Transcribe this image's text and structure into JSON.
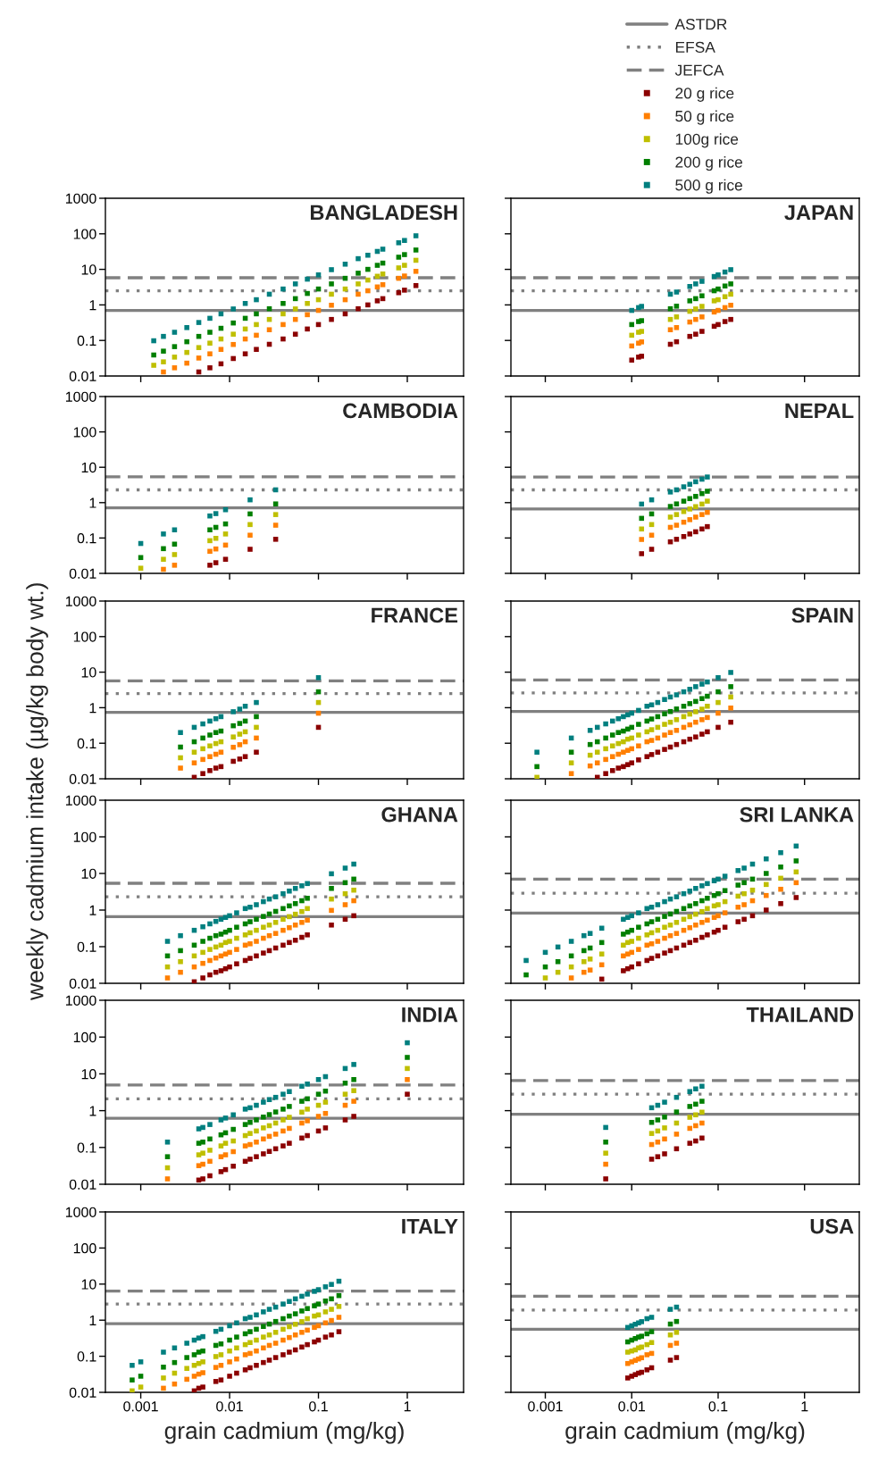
{
  "chart_data": [
    {
      "type": "scatter",
      "title": "BANGLADESH",
      "log": "xy",
      "xlim": [
        0.0004,
        4.3
      ],
      "ylim": [
        0.01,
        1000
      ],
      "xticks": [
        0.001,
        0.01,
        0.1,
        1
      ],
      "yticks": [
        0.01,
        0.1,
        1,
        10,
        100,
        1000
      ],
      "tick_labels": "y",
      "legend": "top right",
      "marker": "square",
      "ref_lines": [
        {
          "axis": "y",
          "value": 0.7,
          "label": "ASTDR",
          "color": "#808080",
          "line_style": "solid"
        },
        {
          "axis": "y",
          "value": 2.5,
          "label": "EFSA",
          "color": "#808080",
          "line_style": "dotted"
        },
        {
          "axis": "y",
          "value": 5.8,
          "label": "JEFCA",
          "color": "#808080",
          "line_style": "dashed"
        }
      ],
      "x": [
        0.0014,
        0.0018,
        0.0024,
        0.0033,
        0.0045,
        0.006,
        0.008,
        0.011,
        0.015,
        0.02,
        0.028,
        0.04,
        0.055,
        0.075,
        0.1,
        0.14,
        0.2,
        0.28,
        0.36,
        0.46,
        0.53,
        0.8,
        0.93,
        1.25
      ],
      "series": [
        {
          "name": "20 g rice",
          "color": "#8b0000",
          "values": [
            null,
            null,
            null,
            null,
            0.013,
            0.017,
            0.022,
            0.031,
            0.042,
            0.056,
            0.078,
            0.11,
            0.15,
            0.21,
            0.28,
            0.39,
            0.56,
            0.78,
            1,
            1.3,
            1.5,
            2.2,
            2.6,
            3.5
          ]
        },
        {
          "name": "50 g rice",
          "color": "#ff7f00",
          "values": [
            null,
            0.013,
            0.017,
            0.023,
            0.032,
            0.042,
            0.056,
            0.077,
            0.11,
            0.14,
            0.2,
            0.28,
            0.39,
            0.53,
            0.7,
            0.98,
            1.4,
            2,
            2.5,
            3.2,
            3.7,
            5.6,
            6.5,
            8.8
          ]
        },
        {
          "name": "100g rice",
          "color": "#bfbf00",
          "values": [
            0.02,
            0.025,
            0.034,
            0.046,
            0.063,
            0.084,
            0.11,
            0.15,
            0.21,
            0.28,
            0.39,
            0.56,
            0.77,
            1.1,
            1.4,
            2,
            2.8,
            3.9,
            5,
            6.4,
            7.4,
            11,
            13,
            18
          ]
        },
        {
          "name": "200 g rice",
          "color": "#007f00",
          "values": [
            0.039,
            0.05,
            0.067,
            0.092,
            0.13,
            0.17,
            0.22,
            0.31,
            0.42,
            0.56,
            0.78,
            1.1,
            1.5,
            2.1,
            2.8,
            3.9,
            5.6,
            7.8,
            10,
            13,
            15,
            22,
            26,
            35
          ]
        },
        {
          "name": "500 g rice",
          "color": "#007f7f",
          "values": [
            0.098,
            0.13,
            0.17,
            0.23,
            0.32,
            0.42,
            0.56,
            0.77,
            1.1,
            1.4,
            2,
            2.8,
            3.9,
            5.3,
            7,
            9.8,
            14,
            20,
            25,
            32,
            37,
            56,
            65,
            88
          ]
        }
      ]
    },
    {
      "type": "scatter",
      "title": "JAPAN",
      "log": "xy",
      "xlim": [
        0.0004,
        4.3
      ],
      "ylim": [
        0.01,
        1000
      ],
      "xticks": [
        0.001,
        0.01,
        0.1,
        1
      ],
      "yticks": [
        0.01,
        0.1,
        1,
        10,
        100,
        1000
      ],
      "tick_labels": false,
      "ref_lines": [
        {
          "axis": "y",
          "value": 0.7,
          "color": "#808080",
          "line_style": "solid"
        },
        {
          "axis": "y",
          "value": 2.5,
          "color": "#808080",
          "line_style": "dotted"
        },
        {
          "axis": "y",
          "value": 5.8,
          "color": "#808080",
          "line_style": "dashed"
        }
      ],
      "x": [
        0.01,
        0.012,
        0.013,
        0.028,
        0.033,
        0.047,
        0.055,
        0.065,
        0.09,
        0.1,
        0.12,
        0.14
      ],
      "series": [
        {
          "color": "#8b0000",
          "values": [
            0.028,
            0.034,
            0.036,
            0.078,
            0.092,
            0.13,
            0.15,
            0.18,
            0.25,
            0.28,
            0.34,
            0.39
          ]
        },
        {
          "color": "#ff7f00",
          "values": [
            0.07,
            0.084,
            0.091,
            0.2,
            0.23,
            0.33,
            0.39,
            0.46,
            0.63,
            0.7,
            0.84,
            0.98
          ]
        },
        {
          "color": "#bfbf00",
          "values": [
            0.14,
            0.17,
            0.18,
            0.39,
            0.46,
            0.66,
            0.77,
            0.91,
            1.3,
            1.4,
            1.7,
            2
          ]
        },
        {
          "color": "#007f00",
          "values": [
            0.28,
            0.34,
            0.36,
            0.78,
            0.92,
            1.3,
            1.5,
            1.8,
            2.5,
            2.8,
            3.4,
            3.9
          ]
        },
        {
          "color": "#007f7f",
          "values": [
            0.7,
            0.84,
            0.91,
            2,
            2.3,
            3.3,
            3.9,
            4.6,
            6.3,
            7,
            8.4,
            9.8
          ]
        }
      ]
    },
    {
      "type": "scatter",
      "title": "CAMBODIA",
      "log": "xy",
      "xlim": [
        0.0004,
        4.3
      ],
      "ylim": [
        0.01,
        1000
      ],
      "xticks": [
        0.001,
        0.01,
        0.1,
        1
      ],
      "yticks": [
        0.01,
        0.1,
        1,
        10,
        100,
        1000
      ],
      "tick_labels": "y",
      "ref_lines": [
        {
          "axis": "y",
          "value": 0.71,
          "color": "#808080",
          "line_style": "solid"
        },
        {
          "axis": "y",
          "value": 2.3,
          "color": "#808080",
          "line_style": "dotted"
        },
        {
          "axis": "y",
          "value": 5.4,
          "color": "#808080",
          "line_style": "dashed"
        }
      ],
      "x": [
        0.001,
        0.0018,
        0.0024,
        0.006,
        0.007,
        0.009,
        0.017,
        0.033
      ],
      "series": [
        {
          "color": "#8b0000",
          "values": [
            null,
            null,
            null,
            0.017,
            0.02,
            0.025,
            0.048,
            0.092
          ]
        },
        {
          "color": "#ff7f00",
          "values": [
            null,
            0.013,
            0.017,
            0.042,
            0.049,
            0.063,
            0.12,
            0.23
          ]
        },
        {
          "color": "#bfbf00",
          "values": [
            0.014,
            0.025,
            0.034,
            0.084,
            0.098,
            0.13,
            0.24,
            0.46
          ]
        },
        {
          "color": "#007f00",
          "values": [
            0.028,
            0.05,
            0.067,
            0.17,
            0.2,
            0.25,
            0.48,
            0.92
          ]
        },
        {
          "color": "#007f7f",
          "values": [
            0.07,
            0.13,
            0.17,
            0.42,
            0.49,
            0.63,
            1.2,
            2.3
          ]
        }
      ]
    },
    {
      "type": "scatter",
      "title": "NEPAL",
      "log": "xy",
      "xlim": [
        0.0004,
        4.3
      ],
      "ylim": [
        0.01,
        1000
      ],
      "xticks": [
        0.001,
        0.01,
        0.1,
        1
      ],
      "yticks": [
        0.01,
        0.1,
        1,
        10,
        100,
        1000
      ],
      "tick_labels": false,
      "ref_lines": [
        {
          "axis": "y",
          "value": 0.66,
          "color": "#808080",
          "line_style": "solid"
        },
        {
          "axis": "y",
          "value": 2.3,
          "color": "#808080",
          "line_style": "dotted"
        },
        {
          "axis": "y",
          "value": 5.3,
          "color": "#808080",
          "line_style": "dashed"
        }
      ],
      "x": [
        0.013,
        0.017,
        0.028,
        0.033,
        0.04,
        0.047,
        0.055,
        0.065,
        0.075
      ],
      "series": [
        {
          "color": "#8b0000",
          "values": [
            0.036,
            0.048,
            0.078,
            0.092,
            0.11,
            0.13,
            0.15,
            0.18,
            0.21
          ]
        },
        {
          "color": "#ff7f00",
          "values": [
            0.091,
            0.12,
            0.2,
            0.23,
            0.28,
            0.33,
            0.39,
            0.46,
            0.53
          ]
        },
        {
          "color": "#bfbf00",
          "values": [
            0.18,
            0.24,
            0.39,
            0.46,
            0.56,
            0.66,
            0.77,
            0.91,
            1.1
          ]
        },
        {
          "color": "#007f00",
          "values": [
            0.36,
            0.48,
            0.78,
            0.92,
            1.1,
            1.3,
            1.5,
            1.8,
            2.1
          ]
        },
        {
          "color": "#007f7f",
          "values": [
            0.91,
            1.2,
            2,
            2.3,
            2.8,
            3.3,
            3.9,
            4.6,
            5.3
          ]
        }
      ]
    },
    {
      "type": "scatter",
      "title": "FRANCE",
      "log": "xy",
      "xlim": [
        0.0004,
        4.3
      ],
      "ylim": [
        0.01,
        1000
      ],
      "xticks": [
        0.001,
        0.01,
        0.1,
        1
      ],
      "yticks": [
        0.01,
        0.1,
        1,
        10,
        100,
        1000
      ],
      "tick_labels": "y",
      "ref_lines": [
        {
          "axis": "y",
          "value": 0.74,
          "color": "#808080",
          "line_style": "solid"
        },
        {
          "axis": "y",
          "value": 2.5,
          "color": "#808080",
          "line_style": "dotted"
        },
        {
          "axis": "y",
          "value": 5.7,
          "color": "#808080",
          "line_style": "dashed"
        }
      ],
      "x": [
        0.0028,
        0.004,
        0.005,
        0.006,
        0.007,
        0.008,
        0.011,
        0.013,
        0.015,
        0.02,
        0.1
      ],
      "series": [
        {
          "color": "#8b0000",
          "values": [
            null,
            0.011,
            0.014,
            0.017,
            0.02,
            0.022,
            0.031,
            0.036,
            0.042,
            0.056,
            0.28
          ]
        },
        {
          "color": "#ff7f00",
          "values": [
            0.02,
            0.028,
            0.035,
            0.042,
            0.049,
            0.056,
            0.077,
            0.091,
            0.11,
            0.14,
            0.7
          ]
        },
        {
          "color": "#bfbf00",
          "values": [
            0.039,
            0.056,
            0.07,
            0.084,
            0.098,
            0.11,
            0.15,
            0.18,
            0.21,
            0.28,
            1.4
          ]
        },
        {
          "color": "#007f00",
          "values": [
            0.078,
            0.11,
            0.14,
            0.17,
            0.2,
            0.22,
            0.31,
            0.36,
            0.42,
            0.56,
            2.8
          ]
        },
        {
          "color": "#007f7f",
          "values": [
            0.2,
            0.28,
            0.35,
            0.42,
            0.49,
            0.56,
            0.77,
            0.91,
            1.1,
            1.4,
            7
          ]
        }
      ]
    },
    {
      "type": "scatter",
      "title": "SPAIN",
      "log": "xy",
      "xlim": [
        0.0004,
        4.3
      ],
      "ylim": [
        0.01,
        1000
      ],
      "xticks": [
        0.001,
        0.01,
        0.1,
        1
      ],
      "yticks": [
        0.01,
        0.1,
        1,
        10,
        100,
        1000
      ],
      "tick_labels": false,
      "ref_lines": [
        {
          "axis": "y",
          "value": 0.78,
          "color": "#808080",
          "line_style": "solid"
        },
        {
          "axis": "y",
          "value": 2.6,
          "color": "#808080",
          "line_style": "dotted"
        },
        {
          "axis": "y",
          "value": 6,
          "color": "#808080",
          "line_style": "dashed"
        }
      ],
      "x": [
        0.0008,
        0.002,
        0.0033,
        0.004,
        0.005,
        0.006,
        0.007,
        0.008,
        0.009,
        0.01,
        0.012,
        0.015,
        0.017,
        0.02,
        0.024,
        0.028,
        0.033,
        0.04,
        0.047,
        0.055,
        0.065,
        0.075,
        0.1,
        0.14
      ],
      "series": [
        {
          "color": "#8b0000",
          "values": [
            null,
            null,
            null,
            0.011,
            0.014,
            0.017,
            0.02,
            0.022,
            0.025,
            0.028,
            0.034,
            0.042,
            0.048,
            0.056,
            0.067,
            0.078,
            0.092,
            0.11,
            0.13,
            0.15,
            0.18,
            0.21,
            0.28,
            0.39
          ]
        },
        {
          "color": "#ff7f00",
          "values": [
            null,
            0.014,
            0.023,
            0.028,
            0.035,
            0.042,
            0.049,
            0.056,
            0.063,
            0.07,
            0.084,
            0.11,
            0.12,
            0.14,
            0.17,
            0.2,
            0.23,
            0.28,
            0.33,
            0.39,
            0.46,
            0.53,
            0.7,
            0.98
          ]
        },
        {
          "color": "#bfbf00",
          "values": [
            0.011,
            0.028,
            0.046,
            0.056,
            0.07,
            0.084,
            0.098,
            0.11,
            0.13,
            0.14,
            0.17,
            0.21,
            0.24,
            0.28,
            0.34,
            0.39,
            0.46,
            0.56,
            0.66,
            0.77,
            0.91,
            1.1,
            1.4,
            2
          ]
        },
        {
          "color": "#007f00",
          "values": [
            0.022,
            0.056,
            0.092,
            0.11,
            0.14,
            0.17,
            0.2,
            0.22,
            0.25,
            0.28,
            0.34,
            0.42,
            0.48,
            0.56,
            0.67,
            0.78,
            0.92,
            1.1,
            1.3,
            1.5,
            1.8,
            2.1,
            2.8,
            3.9
          ]
        },
        {
          "color": "#007f7f",
          "values": [
            0.056,
            0.14,
            0.23,
            0.28,
            0.35,
            0.42,
            0.49,
            0.56,
            0.63,
            0.7,
            0.84,
            1.1,
            1.2,
            1.4,
            1.7,
            2,
            2.3,
            2.8,
            3.3,
            3.9,
            4.6,
            5.3,
            7,
            9.8
          ]
        }
      ]
    },
    {
      "type": "scatter",
      "title": "GHANA",
      "ylabel": "weekly cadmium intake (µg/kg body wt.)",
      "log": "xy",
      "xlim": [
        0.0004,
        4.3
      ],
      "ylim": [
        0.01,
        1000
      ],
      "xticks": [
        0.001,
        0.01,
        0.1,
        1
      ],
      "yticks": [
        0.01,
        0.1,
        1,
        10,
        100,
        1000
      ],
      "tick_labels": "y",
      "ref_lines": [
        {
          "axis": "y",
          "value": 0.66,
          "color": "#808080",
          "line_style": "solid"
        },
        {
          "axis": "y",
          "value": 2.3,
          "color": "#808080",
          "line_style": "dotted"
        },
        {
          "axis": "y",
          "value": 5.4,
          "color": "#808080",
          "line_style": "dashed"
        }
      ],
      "x": [
        0.002,
        0.0028,
        0.004,
        0.005,
        0.006,
        0.007,
        0.008,
        0.009,
        0.01,
        0.012,
        0.015,
        0.017,
        0.02,
        0.024,
        0.028,
        0.033,
        0.04,
        0.047,
        0.055,
        0.065,
        0.075,
        0.14,
        0.2,
        0.25
      ],
      "series": [
        {
          "color": "#8b0000",
          "values": [
            null,
            null,
            0.011,
            0.014,
            0.017,
            0.02,
            0.022,
            0.025,
            0.028,
            0.034,
            0.042,
            0.048,
            0.056,
            0.067,
            0.078,
            0.092,
            0.11,
            0.13,
            0.15,
            0.18,
            0.21,
            0.39,
            0.56,
            0.7
          ]
        },
        {
          "color": "#ff7f00",
          "values": [
            0.014,
            0.02,
            0.028,
            0.035,
            0.042,
            0.049,
            0.056,
            0.063,
            0.07,
            0.084,
            0.11,
            0.12,
            0.14,
            0.17,
            0.2,
            0.23,
            0.28,
            0.33,
            0.39,
            0.46,
            0.53,
            0.98,
            1.4,
            1.8
          ]
        },
        {
          "color": "#bfbf00",
          "values": [
            0.028,
            0.039,
            0.056,
            0.07,
            0.084,
            0.098,
            0.11,
            0.13,
            0.14,
            0.17,
            0.21,
            0.24,
            0.28,
            0.34,
            0.39,
            0.46,
            0.56,
            0.66,
            0.77,
            0.91,
            1.1,
            2,
            2.8,
            3.5
          ]
        },
        {
          "color": "#007f00",
          "values": [
            0.056,
            0.078,
            0.11,
            0.14,
            0.17,
            0.2,
            0.22,
            0.25,
            0.28,
            0.34,
            0.42,
            0.48,
            0.56,
            0.67,
            0.78,
            0.92,
            1.1,
            1.3,
            1.5,
            1.8,
            2.1,
            3.9,
            5.6,
            7
          ]
        },
        {
          "color": "#007f7f",
          "values": [
            0.14,
            0.2,
            0.28,
            0.35,
            0.42,
            0.49,
            0.56,
            0.63,
            0.7,
            0.84,
            1.1,
            1.2,
            1.4,
            1.7,
            2,
            2.3,
            2.8,
            3.3,
            3.9,
            4.6,
            5.3,
            9.8,
            14,
            18
          ]
        }
      ]
    },
    {
      "type": "scatter",
      "title": "SRI LANKA",
      "log": "xy",
      "xlim": [
        0.0004,
        4.3
      ],
      "ylim": [
        0.01,
        1000
      ],
      "xticks": [
        0.001,
        0.01,
        0.1,
        1
      ],
      "yticks": [
        0.01,
        0.1,
        1,
        10,
        100,
        1000
      ],
      "tick_labels": false,
      "ref_lines": [
        {
          "axis": "y",
          "value": 0.83,
          "color": "#808080",
          "line_style": "solid"
        },
        {
          "axis": "y",
          "value": 2.9,
          "color": "#808080",
          "line_style": "dotted"
        },
        {
          "axis": "y",
          "value": 7,
          "color": "#808080",
          "line_style": "dashed"
        }
      ],
      "x": [
        0.0006,
        0.001,
        0.0014,
        0.002,
        0.0028,
        0.0033,
        0.0045,
        0.008,
        0.009,
        0.01,
        0.012,
        0.015,
        0.017,
        0.02,
        0.024,
        0.028,
        0.033,
        0.04,
        0.047,
        0.055,
        0.065,
        0.075,
        0.09,
        0.1,
        0.12,
        0.17,
        0.2,
        0.25,
        0.36,
        0.53,
        0.8
      ],
      "series": [
        {
          "color": "#8b0000",
          "values": [
            null,
            null,
            null,
            null,
            null,
            null,
            0.013,
            0.022,
            0.025,
            0.028,
            0.034,
            0.042,
            0.048,
            0.056,
            0.067,
            0.078,
            0.092,
            0.11,
            0.13,
            0.15,
            0.18,
            0.21,
            0.25,
            0.28,
            0.34,
            0.48,
            0.56,
            0.7,
            1,
            1.5,
            2.2
          ]
        },
        {
          "color": "#ff7f00",
          "values": [
            null,
            null,
            null,
            0.014,
            0.02,
            0.023,
            0.032,
            0.056,
            0.063,
            0.07,
            0.084,
            0.11,
            0.12,
            0.14,
            0.17,
            0.2,
            0.23,
            0.28,
            0.33,
            0.39,
            0.46,
            0.53,
            0.63,
            0.7,
            0.84,
            1.2,
            1.4,
            1.8,
            2.5,
            3.7,
            5.6
          ]
        },
        {
          "color": "#bfbf00",
          "values": [
            null,
            0.014,
            0.02,
            0.028,
            0.039,
            0.046,
            0.063,
            0.11,
            0.13,
            0.14,
            0.17,
            0.21,
            0.24,
            0.28,
            0.34,
            0.39,
            0.46,
            0.56,
            0.66,
            0.77,
            0.91,
            1.1,
            1.3,
            1.4,
            1.7,
            2.4,
            2.8,
            3.5,
            5,
            7.4,
            11
          ]
        },
        {
          "color": "#007f00",
          "values": [
            0.017,
            0.028,
            0.039,
            0.056,
            0.078,
            0.092,
            0.13,
            0.22,
            0.25,
            0.28,
            0.34,
            0.42,
            0.48,
            0.56,
            0.67,
            0.78,
            0.92,
            1.1,
            1.3,
            1.5,
            1.8,
            2.1,
            2.5,
            2.8,
            3.4,
            4.8,
            5.6,
            7,
            10,
            15,
            22
          ]
        },
        {
          "color": "#007f7f",
          "values": [
            0.042,
            0.07,
            0.098,
            0.14,
            0.2,
            0.23,
            0.32,
            0.56,
            0.63,
            0.7,
            0.84,
            1.1,
            1.2,
            1.4,
            1.7,
            2,
            2.3,
            2.8,
            3.3,
            3.9,
            4.6,
            5.3,
            6.3,
            7,
            8.4,
            12,
            14,
            18,
            25,
            37,
            56
          ]
        }
      ]
    },
    {
      "type": "scatter",
      "title": "INDIA",
      "log": "xy",
      "xlim": [
        0.0004,
        4.3
      ],
      "ylim": [
        0.01,
        1000
      ],
      "xticks": [
        0.001,
        0.01,
        0.1,
        1
      ],
      "yticks": [
        0.01,
        0.1,
        1,
        10,
        100,
        1000
      ],
      "tick_labels": "y",
      "ref_lines": [
        {
          "axis": "y",
          "value": 0.62,
          "color": "#808080",
          "line_style": "solid"
        },
        {
          "axis": "y",
          "value": 2.1,
          "color": "#808080",
          "line_style": "dotted"
        },
        {
          "axis": "y",
          "value": 5,
          "color": "#808080",
          "line_style": "dashed"
        }
      ],
      "x": [
        0.002,
        0.0045,
        0.005,
        0.006,
        0.008,
        0.009,
        0.011,
        0.015,
        0.017,
        0.02,
        0.024,
        0.028,
        0.033,
        0.04,
        0.047,
        0.065,
        0.075,
        0.1,
        0.12,
        0.2,
        0.25,
        1
      ],
      "series": [
        {
          "color": "#8b0000",
          "values": [
            null,
            0.013,
            0.014,
            0.017,
            0.022,
            0.025,
            0.031,
            0.042,
            0.048,
            0.056,
            0.067,
            0.078,
            0.092,
            0.11,
            0.13,
            0.18,
            0.21,
            0.28,
            0.34,
            0.56,
            0.7,
            2.8
          ]
        },
        {
          "color": "#ff7f00",
          "values": [
            0.014,
            0.032,
            0.035,
            0.042,
            0.056,
            0.063,
            0.077,
            0.11,
            0.12,
            0.14,
            0.17,
            0.2,
            0.23,
            0.28,
            0.33,
            0.46,
            0.53,
            0.7,
            0.84,
            1.4,
            1.8,
            7
          ]
        },
        {
          "color": "#bfbf00",
          "values": [
            0.028,
            0.063,
            0.07,
            0.084,
            0.11,
            0.13,
            0.15,
            0.21,
            0.24,
            0.28,
            0.34,
            0.39,
            0.46,
            0.56,
            0.66,
            0.91,
            1.1,
            1.4,
            1.7,
            2.8,
            3.5,
            14
          ]
        },
        {
          "color": "#007f00",
          "values": [
            0.056,
            0.13,
            0.14,
            0.17,
            0.22,
            0.25,
            0.31,
            0.42,
            0.48,
            0.56,
            0.67,
            0.78,
            0.92,
            1.1,
            1.3,
            1.8,
            2.1,
            2.8,
            3.4,
            5.6,
            7,
            28
          ]
        },
        {
          "color": "#007f7f",
          "values": [
            0.14,
            0.32,
            0.35,
            0.42,
            0.56,
            0.63,
            0.77,
            1.1,
            1.2,
            1.4,
            1.7,
            2,
            2.3,
            2.8,
            3.3,
            4.6,
            5.3,
            7,
            8.4,
            14,
            18,
            70
          ]
        }
      ]
    },
    {
      "type": "scatter",
      "title": "THAILAND",
      "log": "xy",
      "xlim": [
        0.0004,
        4.3
      ],
      "ylim": [
        0.01,
        1000
      ],
      "xticks": [
        0.001,
        0.01,
        0.1,
        1
      ],
      "yticks": [
        0.01,
        0.1,
        1,
        10,
        100,
        1000
      ],
      "tick_labels": false,
      "ref_lines": [
        {
          "axis": "y",
          "value": 0.8,
          "color": "#808080",
          "line_style": "solid"
        },
        {
          "axis": "y",
          "value": 2.8,
          "color": "#808080",
          "line_style": "dotted"
        },
        {
          "axis": "y",
          "value": 6.6,
          "color": "#808080",
          "line_style": "dashed"
        }
      ],
      "x": [
        0.005,
        0.017,
        0.02,
        0.024,
        0.033,
        0.047,
        0.055,
        0.065
      ],
      "series": [
        {
          "color": "#8b0000",
          "values": [
            0.014,
            0.048,
            0.056,
            0.067,
            0.092,
            0.13,
            0.15,
            0.18
          ]
        },
        {
          "color": "#ff7f00",
          "values": [
            0.035,
            0.12,
            0.14,
            0.17,
            0.23,
            0.33,
            0.39,
            0.46
          ]
        },
        {
          "color": "#bfbf00",
          "values": [
            0.07,
            0.24,
            0.28,
            0.34,
            0.46,
            0.66,
            0.77,
            0.91
          ]
        },
        {
          "color": "#007f00",
          "values": [
            0.14,
            0.48,
            0.56,
            0.67,
            0.92,
            1.3,
            1.5,
            1.8
          ]
        },
        {
          "color": "#007f7f",
          "values": [
            0.35,
            1.2,
            1.4,
            1.7,
            2.3,
            3.3,
            3.9,
            4.6
          ]
        }
      ]
    },
    {
      "type": "scatter",
      "title": "ITALY",
      "xlabel": "grain cadmium (mg/kg)",
      "log": "xy",
      "xlim": [
        0.0004,
        4.3
      ],
      "ylim": [
        0.01,
        1000
      ],
      "xticks": [
        0.001,
        0.01,
        0.1,
        1
      ],
      "yticks": [
        0.01,
        0.1,
        1,
        10,
        100,
        1000
      ],
      "ref_lines": [
        {
          "axis": "y",
          "value": 0.8,
          "color": "#808080",
          "line_style": "solid"
        },
        {
          "axis": "y",
          "value": 2.8,
          "color": "#808080",
          "line_style": "dotted"
        },
        {
          "axis": "y",
          "value": 6.4,
          "color": "#808080",
          "line_style": "dashed"
        }
      ],
      "x": [
        0.0008,
        0.001,
        0.0018,
        0.0024,
        0.0033,
        0.004,
        0.0045,
        0.005,
        0.007,
        0.008,
        0.01,
        0.012,
        0.015,
        0.017,
        0.02,
        0.024,
        0.028,
        0.033,
        0.04,
        0.047,
        0.055,
        0.065,
        0.075,
        0.09,
        0.1,
        0.12,
        0.14,
        0.17
      ],
      "series": [
        {
          "color": "#8b0000",
          "values": [
            null,
            null,
            null,
            null,
            null,
            0.011,
            0.013,
            0.014,
            0.02,
            0.022,
            0.028,
            0.034,
            0.042,
            0.048,
            0.056,
            0.067,
            0.078,
            0.092,
            0.11,
            0.13,
            0.15,
            0.18,
            0.21,
            0.25,
            0.28,
            0.34,
            0.39,
            0.48
          ]
        },
        {
          "color": "#ff7f00",
          "values": [
            null,
            null,
            0.013,
            0.017,
            0.023,
            0.028,
            0.032,
            0.035,
            0.049,
            0.056,
            0.07,
            0.084,
            0.11,
            0.12,
            0.14,
            0.17,
            0.2,
            0.23,
            0.28,
            0.33,
            0.39,
            0.46,
            0.53,
            0.63,
            0.7,
            0.84,
            0.98,
            1.2
          ]
        },
        {
          "color": "#bfbf00",
          "values": [
            0.011,
            0.014,
            0.025,
            0.034,
            0.046,
            0.056,
            0.063,
            0.07,
            0.098,
            0.11,
            0.14,
            0.17,
            0.21,
            0.24,
            0.28,
            0.34,
            0.39,
            0.46,
            0.56,
            0.66,
            0.77,
            0.91,
            1.1,
            1.3,
            1.4,
            1.7,
            2,
            2.4
          ]
        },
        {
          "color": "#007f00",
          "values": [
            0.022,
            0.028,
            0.05,
            0.067,
            0.092,
            0.11,
            0.13,
            0.14,
            0.2,
            0.22,
            0.28,
            0.34,
            0.42,
            0.48,
            0.56,
            0.67,
            0.78,
            0.92,
            1.1,
            1.3,
            1.5,
            1.8,
            2.1,
            2.5,
            2.8,
            3.4,
            3.9,
            4.8
          ]
        },
        {
          "color": "#007f7f",
          "values": [
            0.056,
            0.07,
            0.13,
            0.17,
            0.23,
            0.28,
            0.32,
            0.35,
            0.49,
            0.56,
            0.7,
            0.84,
            1.1,
            1.2,
            1.4,
            1.7,
            2,
            2.3,
            2.8,
            3.3,
            3.9,
            4.6,
            5.3,
            6.3,
            7,
            8.4,
            9.8,
            12
          ]
        }
      ]
    },
    {
      "type": "scatter",
      "title": "USA",
      "xlabel": "grain cadmium (mg/kg)",
      "log": "xy",
      "xlim": [
        0.0004,
        4.3
      ],
      "ylim": [
        0.01,
        1000
      ],
      "xticks": [
        0.001,
        0.01,
        0.1,
        1
      ],
      "yticks": [
        0.01,
        0.1,
        1,
        10,
        100,
        1000
      ],
      "tick_labels": "x",
      "ref_lines": [
        {
          "axis": "y",
          "value": 0.56,
          "color": "#808080",
          "line_style": "solid"
        },
        {
          "axis": "y",
          "value": 1.9,
          "color": "#808080",
          "line_style": "dotted"
        },
        {
          "axis": "y",
          "value": 4.6,
          "color": "#808080",
          "line_style": "dashed"
        }
      ],
      "x": [
        0.009,
        0.01,
        0.011,
        0.012,
        0.013,
        0.015,
        0.017,
        0.028,
        0.033
      ],
      "series": [
        {
          "color": "#8b0000",
          "values": [
            0.025,
            0.028,
            0.031,
            0.034,
            0.036,
            0.042,
            0.048,
            0.078,
            0.092
          ]
        },
        {
          "color": "#ff7f00",
          "values": [
            0.063,
            0.07,
            0.077,
            0.084,
            0.091,
            0.11,
            0.12,
            0.2,
            0.23
          ]
        },
        {
          "color": "#bfbf00",
          "values": [
            0.13,
            0.14,
            0.15,
            0.17,
            0.18,
            0.21,
            0.24,
            0.39,
            0.46
          ]
        },
        {
          "color": "#007f00",
          "values": [
            0.25,
            0.28,
            0.31,
            0.34,
            0.36,
            0.42,
            0.48,
            0.78,
            0.92
          ]
        },
        {
          "color": "#007f7f",
          "values": [
            0.63,
            0.7,
            0.77,
            0.84,
            0.91,
            1.1,
            1.2,
            2,
            2.3
          ]
        }
      ]
    }
  ]
}
